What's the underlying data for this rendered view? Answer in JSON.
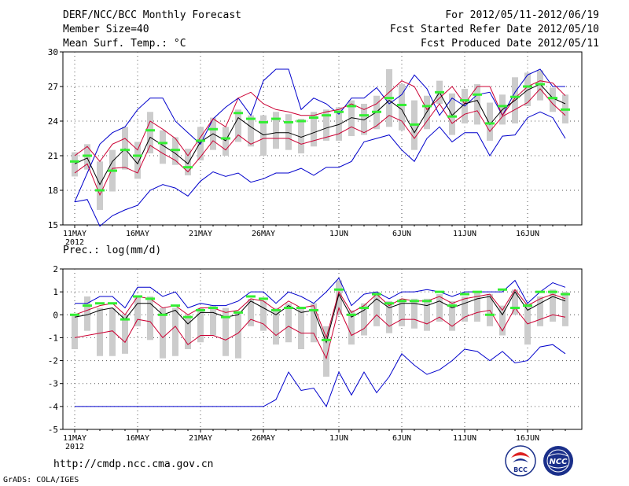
{
  "header": {
    "title": "DERF/NCC/BCC Monthly Forecast",
    "member_size": "Member Size=40",
    "variable": "Mean Surf. Temp.: °C",
    "period": "For 2012/05/11-2012/06/19",
    "start_date": "Fcst Started Refer Date 2012/05/10",
    "produced_date": "Fcst Produced Date 2012/05/11"
  },
  "footer": {
    "url": "http://cmdp.ncc.cma.gov.cn",
    "credit": "GrADS: COLA/IGES",
    "logo_left_text": "BCC",
    "logo_right_text": "NCC"
  },
  "colors": {
    "envelope": "#0000cc",
    "spread": "#cc0033",
    "mean": "#000000",
    "median": "#33ee33",
    "box": "#cccccc",
    "grid": "#555555"
  },
  "chart_data": [
    {
      "type": "line",
      "title": "Mean Surf. Temp.: °C",
      "ylim": [
        15,
        30
      ],
      "yticks": [
        15,
        18,
        21,
        24,
        27,
        30
      ],
      "xticks": [
        "11MAY",
        "16MAY",
        "21MAY",
        "26MAY",
        "1JUN",
        "6JUN",
        "11JUN",
        "16JUN"
      ],
      "xtick_days": [
        0,
        5,
        10,
        15,
        21,
        26,
        31,
        36
      ],
      "year_label": "2012",
      "days": 40,
      "series": [
        {
          "name": "max",
          "values": [
            17.0,
            19.5,
            22.0,
            23.0,
            23.5,
            25.0,
            26.0,
            26.0,
            24.0,
            23.0,
            22.0,
            24.2,
            25.2,
            26.0,
            24.5,
            27.5,
            28.5,
            28.5,
            25.0,
            26.0,
            25.5,
            24.6,
            26.0,
            26.0,
            26.9,
            25.5,
            26.3,
            28.0,
            26.8,
            24.5,
            26.0,
            25.3,
            26.3,
            26.5,
            24.5,
            26.5,
            28.0,
            28.5,
            27.0,
            27.0
          ]
        },
        {
          "name": "upper",
          "values": [
            21.0,
            21.8,
            20.5,
            22.0,
            22.5,
            21.5,
            24.0,
            23.3,
            22.5,
            21.0,
            22.6,
            24.2,
            23.5,
            26.0,
            26.5,
            25.5,
            25.0,
            24.8,
            24.5,
            24.5,
            24.8,
            25.0,
            25.5,
            25.0,
            25.5,
            26.5,
            27.5,
            27.0,
            25.0,
            26.0,
            27.0,
            25.5,
            27.0,
            27.0,
            24.5,
            26.0,
            27.0,
            27.5,
            27.3,
            26.2
          ]
        },
        {
          "name": "mean",
          "values": [
            20.3,
            20.8,
            18.5,
            20.5,
            21.6,
            20.3,
            22.6,
            21.9,
            21.2,
            20.3,
            22.2,
            22.9,
            22.3,
            24.3,
            23.5,
            22.8,
            23.0,
            23.0,
            22.6,
            23.0,
            23.4,
            23.7,
            24.3,
            24.1,
            24.8,
            25.8,
            25.0,
            23.0,
            24.8,
            26.5,
            24.5,
            25.5,
            25.8,
            23.7,
            25.0,
            25.8,
            26.7,
            27.2,
            26.0,
            25.5
          ]
        },
        {
          "name": "lower",
          "values": [
            19.5,
            20.3,
            17.6,
            19.9,
            20.0,
            19.5,
            21.9,
            21.2,
            20.6,
            19.6,
            20.9,
            22.3,
            21.5,
            22.8,
            22.0,
            22.5,
            22.5,
            22.5,
            22.0,
            22.3,
            22.6,
            22.9,
            23.5,
            23.0,
            23.6,
            24.5,
            24.0,
            22.5,
            24.0,
            25.5,
            23.8,
            24.6,
            24.9,
            23.1,
            24.4,
            25.0,
            25.6,
            26.8,
            25.5,
            24.5
          ]
        },
        {
          "name": "min",
          "values": [
            17.0,
            17.2,
            14.9,
            15.8,
            16.3,
            16.7,
            18.0,
            18.5,
            18.2,
            17.5,
            18.8,
            19.6,
            19.2,
            19.5,
            18.7,
            19.0,
            19.5,
            19.5,
            19.9,
            19.3,
            20.0,
            20.0,
            20.5,
            22.2,
            22.5,
            22.8,
            21.5,
            20.5,
            22.5,
            23.5,
            22.2,
            23.0,
            23.0,
            21.0,
            22.7,
            22.8,
            24.3,
            24.8,
            24.3,
            22.5
          ]
        },
        {
          "name": "median",
          "values": [
            20.5,
            21.0,
            18.0,
            19.7,
            21.5,
            21.0,
            23.2,
            22.1,
            21.5,
            20.0,
            22.3,
            23.3,
            22.5,
            24.7,
            24.2,
            23.9,
            24.2,
            23.9,
            24.0,
            24.3,
            24.5,
            24.8,
            25.3,
            24.5,
            24.8,
            26.0,
            25.4,
            23.7,
            25.3,
            26.5,
            24.4,
            25.8,
            26.3,
            23.8,
            25.3,
            26.1,
            27.0,
            27.2,
            26.0,
            25.0
          ]
        }
      ],
      "boxes": [
        [
          19.2,
          21.3
        ],
        [
          19.8,
          22.0
        ],
        [
          16.3,
          20.5
        ],
        [
          17.9,
          21.5
        ],
        [
          19.8,
          23.5
        ],
        [
          19.0,
          22.2
        ],
        [
          21.2,
          24.8
        ],
        [
          20.3,
          23.2
        ],
        [
          20.2,
          22.6
        ],
        [
          19.3,
          21.6
        ],
        [
          20.6,
          23.5
        ],
        [
          21.5,
          24.3
        ],
        [
          21.0,
          23.5
        ],
        [
          22.2,
          25.0
        ],
        [
          21.8,
          24.5
        ],
        [
          21.0,
          24.5
        ],
        [
          21.6,
          24.8
        ],
        [
          21.5,
          24.6
        ],
        [
          21.2,
          24.2
        ],
        [
          21.8,
          24.8
        ],
        [
          22.3,
          25.0
        ],
        [
          22.3,
          25.2
        ],
        [
          22.7,
          25.8
        ],
        [
          22.8,
          25.5
        ],
        [
          23.3,
          26.2
        ],
        [
          23.5,
          28.5
        ],
        [
          23.2,
          27.2
        ],
        [
          21.5,
          25.8
        ],
        [
          23.3,
          26.2
        ],
        [
          25.5,
          27.5
        ],
        [
          22.8,
          26.4
        ],
        [
          23.8,
          26.8
        ],
        [
          23.7,
          27.2
        ],
        [
          22.3,
          25.6
        ],
        [
          23.7,
          26.3
        ],
        [
          23.8,
          27.8
        ],
        [
          25.3,
          28.2
        ],
        [
          25.8,
          28.4
        ],
        [
          24.8,
          26.9
        ],
        [
          23.8,
          26.3
        ]
      ]
    },
    {
      "type": "line",
      "title": "Prec.: log(mm/d)",
      "ylim": [
        -5,
        2
      ],
      "yticks": [
        -5,
        -4,
        -3,
        -2,
        -1,
        0,
        1,
        2
      ],
      "xticks": [
        "11MAY",
        "16MAY",
        "21MAY",
        "26MAY",
        "1JUN",
        "6JUN",
        "11JUN",
        "16JUN"
      ],
      "xtick_days": [
        0,
        5,
        10,
        15,
        21,
        26,
        31,
        36
      ],
      "year_label": "2012",
      "days": 40,
      "series": [
        {
          "name": "max",
          "values": [
            0.5,
            0.5,
            0.8,
            0.8,
            0.3,
            1.2,
            1.2,
            0.8,
            1.0,
            0.3,
            0.5,
            0.4,
            0.4,
            0.6,
            1.0,
            1.0,
            0.5,
            1.0,
            0.8,
            0.5,
            1.0,
            1.6,
            0.4,
            0.9,
            1.0,
            0.7,
            1.0,
            1.0,
            1.1,
            1.0,
            0.8,
            1.0,
            1.0,
            1.0,
            1.0,
            1.5,
            0.5,
            1.0,
            1.4,
            1.2
          ]
        },
        {
          "name": "upper",
          "values": [
            0.0,
            0.2,
            0.4,
            0.5,
            0.0,
            0.8,
            0.7,
            0.3,
            0.4,
            0.0,
            0.3,
            0.3,
            0.1,
            0.2,
            0.7,
            0.6,
            0.2,
            0.6,
            0.3,
            0.4,
            -1.0,
            1.0,
            0.1,
            0.4,
            0.9,
            0.4,
            0.7,
            0.6,
            0.6,
            0.8,
            0.5,
            0.7,
            0.8,
            0.9,
            0.2,
            1.1,
            0.4,
            0.7,
            0.9,
            0.7
          ]
        },
        {
          "name": "mean",
          "values": [
            -0.1,
            0.0,
            0.2,
            0.3,
            -0.2,
            0.5,
            0.5,
            0.0,
            0.2,
            -0.4,
            0.1,
            0.1,
            -0.1,
            0.0,
            0.6,
            0.3,
            0.0,
            0.4,
            0.1,
            0.2,
            -1.2,
            0.9,
            -0.1,
            0.2,
            0.7,
            0.3,
            0.5,
            0.5,
            0.4,
            0.6,
            0.3,
            0.5,
            0.7,
            0.8,
            0.0,
            1.0,
            0.2,
            0.5,
            0.8,
            0.6
          ]
        },
        {
          "name": "lower",
          "values": [
            -1.0,
            -0.9,
            -0.8,
            -0.7,
            -1.2,
            -0.2,
            -0.3,
            -1.0,
            -0.5,
            -1.3,
            -0.9,
            -0.9,
            -1.1,
            -0.8,
            -0.2,
            -0.4,
            -0.9,
            -0.5,
            -0.8,
            -0.8,
            -1.9,
            0.3,
            -0.9,
            -0.6,
            0.0,
            -0.5,
            -0.2,
            -0.2,
            -0.4,
            -0.1,
            -0.5,
            -0.1,
            0.1,
            0.2,
            -0.7,
            0.3,
            -0.4,
            -0.2,
            0.0,
            -0.1
          ]
        },
        {
          "name": "min",
          "values": [
            -4.0,
            -4.0,
            -4.0,
            -4.0,
            -4.0,
            -4.0,
            -4.0,
            -4.0,
            -4.0,
            -4.0,
            -4.0,
            -4.0,
            -4.0,
            -4.0,
            -4.0,
            -4.0,
            -3.7,
            -2.5,
            -3.3,
            -3.2,
            -4.0,
            -2.5,
            -3.5,
            -2.5,
            -3.4,
            -2.7,
            -1.7,
            -2.2,
            -2.6,
            -2.4,
            -2.0,
            -1.5,
            -1.6,
            -2.0,
            -1.6,
            -2.1,
            -2.0,
            -1.4,
            -1.3,
            -1.7
          ]
        },
        {
          "name": "median",
          "values": [
            0.0,
            0.4,
            0.5,
            0.5,
            -0.2,
            0.8,
            0.7,
            0.0,
            0.4,
            -0.1,
            0.2,
            0.3,
            -0.1,
            0.1,
            0.8,
            0.7,
            0.2,
            0.3,
            0.3,
            0.2,
            -1.1,
            1.1,
            0.0,
            0.3,
            0.9,
            0.5,
            0.6,
            0.6,
            0.6,
            1.0,
            0.4,
            0.9,
            1.0,
            0.0,
            1.1,
            0.3,
            0.4,
            1.0,
            1.0,
            0.9
          ]
        }
      ],
      "boxes": [
        [
          -1.5,
          0.0
        ],
        [
          -0.7,
          0.8
        ],
        [
          -1.8,
          0.3
        ],
        [
          -1.8,
          0.3
        ],
        [
          -1.7,
          0.0
        ],
        [
          -0.5,
          0.8
        ],
        [
          -1.1,
          0.8
        ],
        [
          -1.9,
          0.3
        ],
        [
          -1.8,
          0.3
        ],
        [
          -1.5,
          0.0
        ],
        [
          -1.2,
          0.3
        ],
        [
          -0.9,
          0.4
        ],
        [
          -1.8,
          0.3
        ],
        [
          -1.9,
          0.1
        ],
        [
          -0.5,
          0.7
        ],
        [
          -0.7,
          0.6
        ],
        [
          -1.3,
          0.3
        ],
        [
          -1.2,
          0.5
        ],
        [
          -1.5,
          0.3
        ],
        [
          -1.2,
          0.5
        ],
        [
          -2.7,
          -0.5
        ],
        [
          0.0,
          1.5
        ],
        [
          -1.3,
          0.2
        ],
        [
          -0.9,
          0.5
        ],
        [
          -0.5,
          1.0
        ],
        [
          -0.8,
          0.6
        ],
        [
          -0.5,
          0.7
        ],
        [
          -0.6,
          0.7
        ],
        [
          -0.7,
          0.7
        ],
        [
          -0.3,
          0.9
        ],
        [
          -0.7,
          0.6
        ],
        [
          -0.3,
          0.8
        ],
        [
          -0.3,
          1.0
        ],
        [
          -0.5,
          0.9
        ],
        [
          -0.9,
          0.4
        ],
        [
          0.0,
          1.1
        ],
        [
          -1.3,
          0.5
        ],
        [
          -0.5,
          0.8
        ],
        [
          -0.3,
          1.1
        ],
        [
          -0.5,
          1.0
        ]
      ]
    }
  ]
}
